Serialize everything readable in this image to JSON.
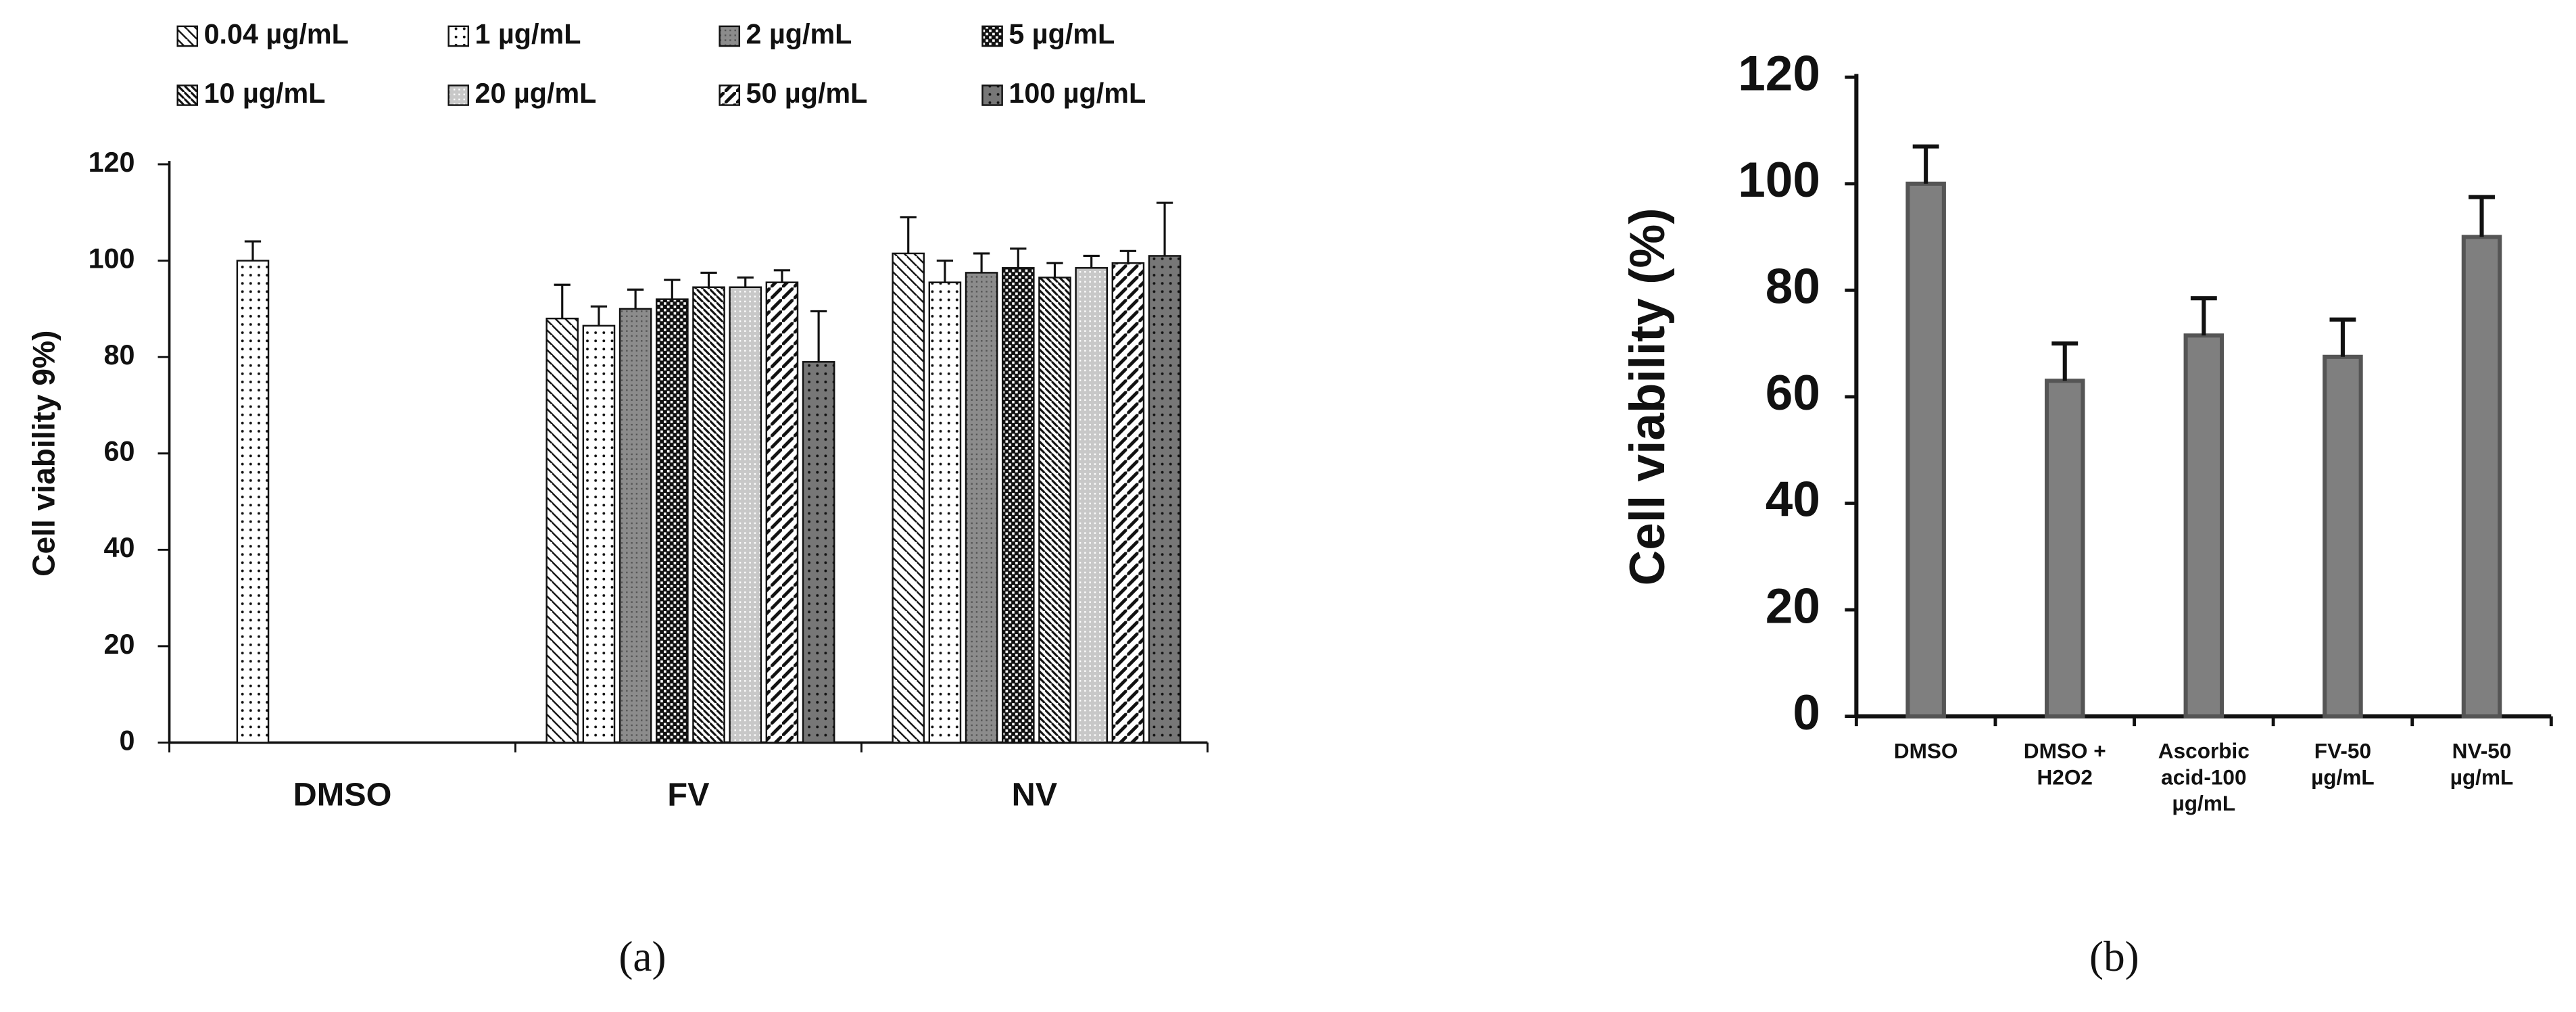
{
  "chart_data": [
    {
      "type": "bar",
      "caption": "(a)",
      "y_label": "Cell viability 9%)",
      "categories": [
        "DMSO",
        "FV",
        "NV"
      ],
      "ylim": [
        0,
        120
      ],
      "yticks": [
        0,
        20,
        40,
        60,
        80,
        100,
        120
      ],
      "series": [
        {
          "name": "0.04 µg/mL",
          "color": "#ffffff",
          "hatch": "back-diagonal",
          "values": [
            null,
            88,
            101.5
          ],
          "errors": [
            null,
            7,
            7.5
          ]
        },
        {
          "name": "1 µg/mL",
          "color": "#ffffff",
          "hatch": "dots",
          "values": [
            100,
            86.5,
            95.5
          ],
          "errors": [
            4,
            4,
            4.5
          ]
        },
        {
          "name": "2 µg/mL",
          "color": "#8c8c8c",
          "hatch": "fine",
          "values": [
            null,
            90,
            97.5
          ],
          "errors": [
            null,
            4,
            4
          ]
        },
        {
          "name": "5 µg/mL",
          "color": "#111111",
          "hatch": "checker",
          "values": [
            null,
            92,
            98.5
          ],
          "errors": [
            null,
            4,
            4
          ]
        },
        {
          "name": "10 µg/mL",
          "color": "#ffffff",
          "hatch": "back-diagonal-dense",
          "values": [
            null,
            94.5,
            96.5
          ],
          "errors": [
            null,
            3,
            3
          ]
        },
        {
          "name": "20 µg/mL",
          "color": "#c8c8c8",
          "hatch": "grid",
          "values": [
            null,
            94.5,
            98.5
          ],
          "errors": [
            null,
            2,
            2.5
          ]
        },
        {
          "name": "50 µg/mL",
          "color": "#ffffff",
          "hatch": "diagonal",
          "values": [
            null,
            95.5,
            99.5
          ],
          "errors": [
            null,
            2.5,
            2.5
          ]
        },
        {
          "name": "100 µg/mL",
          "color": "#777777",
          "hatch": "dots",
          "values": [
            null,
            79,
            101
          ],
          "errors": [
            null,
            10.5,
            11
          ]
        }
      ]
    },
    {
      "type": "bar",
      "caption": "(b)",
      "y_label": "Cell viability (%)",
      "categories": [
        [
          "DMSO"
        ],
        [
          "DMSO +",
          "H2O2"
        ],
        [
          "Ascorbic",
          "acid-100",
          "µg/mL"
        ],
        [
          "FV-50",
          "µg/mL"
        ],
        [
          "NV-50",
          "µg/mL"
        ]
      ],
      "ylim": [
        0,
        120
      ],
      "yticks": [
        0,
        20,
        40,
        60,
        80,
        100,
        120
      ],
      "color": "#7f7f7f",
      "values": [
        100,
        63,
        71.5,
        67.5,
        90
      ],
      "errors": [
        7,
        7,
        7,
        7,
        7.5
      ]
    }
  ]
}
